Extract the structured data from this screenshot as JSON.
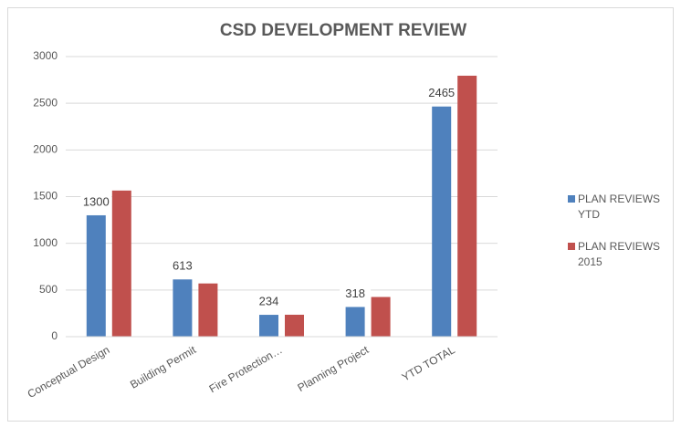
{
  "chart_data": {
    "type": "bar",
    "title": "CSD DEVELOPMENT REVIEW",
    "categories": [
      "Conceptual Design",
      "Building Permit",
      "Fire Protection…",
      "Planning Project",
      "YTD TOTAL"
    ],
    "series": [
      {
        "name": "PLAN REVIEWS YTD",
        "color": "#4f81bd",
        "values": [
          1300,
          613,
          234,
          318,
          2465
        ],
        "data_labels": true
      },
      {
        "name": "PLAN REVIEWS 2015",
        "color": "#c0504d",
        "values": [
          1565,
          570,
          235,
          425,
          2795
        ]
      }
    ],
    "ylim": [
      0,
      3000
    ],
    "yticks": [
      0,
      500,
      1000,
      1500,
      2000,
      2500,
      3000
    ],
    "grid": true,
    "legend": "right"
  }
}
